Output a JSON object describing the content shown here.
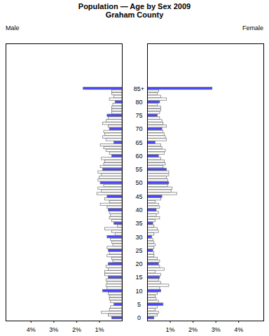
{
  "chart_data": {
    "type": "bar",
    "orientation": "horizontal",
    "title": "Population — Age by Sex 2009",
    "subtitle": "Graham County",
    "categories": [
      "0",
      null,
      null,
      null,
      null,
      "5",
      null,
      null,
      null,
      null,
      "10",
      null,
      null,
      null,
      null,
      "15",
      null,
      null,
      null,
      null,
      "20",
      null,
      null,
      null,
      null,
      "25",
      null,
      null,
      null,
      null,
      "30",
      null,
      null,
      null,
      null,
      "35",
      null,
      null,
      null,
      null,
      "40",
      null,
      null,
      null,
      null,
      "45",
      null,
      null,
      null,
      null,
      "50",
      null,
      null,
      null,
      null,
      "55",
      null,
      null,
      null,
      null,
      "60",
      null,
      null,
      null,
      null,
      "65",
      null,
      null,
      null,
      null,
      "70",
      null,
      null,
      null,
      null,
      "75",
      null,
      null,
      null,
      null,
      "80",
      null,
      null,
      null,
      null,
      "85+"
    ],
    "series": [
      {
        "name": "Male",
        "values": [
          0.45,
          0.6,
          0.9,
          0.55,
          0.5,
          0.35,
          0.5,
          0.55,
          0.55,
          0.6,
          0.85,
          0.65,
          0.7,
          0.65,
          0.7,
          0.6,
          0.75,
          0.75,
          0.6,
          0.7,
          0.6,
          0.4,
          0.45,
          0.65,
          0.55,
          0.6,
          0.65,
          0.4,
          0.45,
          0.5,
          0.65,
          0.3,
          0.45,
          0.75,
          0.2,
          0.35,
          0.45,
          0.55,
          0.5,
          0.55,
          0.6,
          0.65,
          0.95,
          0.55,
          0.75,
          0.65,
          1.1,
          0.9,
          1.05,
          0.8,
          0.95,
          1.05,
          1.0,
          0.9,
          1.05,
          0.85,
          0.95,
          0.8,
          0.75,
          0.9,
          0.45,
          0.55,
          0.7,
          0.8,
          0.95,
          0.35,
          0.7,
          0.85,
          0.75,
          0.8,
          0.55,
          0.6,
          0.85,
          0.7,
          0.6,
          0.65,
          0.45,
          0.45,
          0.45,
          0.4,
          0.3,
          0.55,
          0.35,
          0.45,
          0.45,
          1.7
        ]
      },
      {
        "name": "Female",
        "values": [
          0.3,
          0.45,
          0.5,
          0.35,
          0.45,
          0.7,
          0.5,
          0.4,
          0.35,
          0.45,
          0.6,
          0.55,
          0.95,
          0.6,
          0.5,
          0.55,
          0.6,
          0.35,
          0.75,
          0.55,
          0.5,
          0.55,
          0.45,
          0.3,
          0.3,
          0.25,
          0.3,
          0.35,
          0.3,
          0.25,
          0.2,
          0.3,
          0.5,
          0.45,
          0.3,
          0.25,
          0.35,
          0.55,
          0.4,
          0.5,
          0.4,
          0.55,
          0.5,
          0.35,
          0.6,
          0.65,
          1.3,
          1.05,
          1.1,
          0.9,
          0.95,
          0.9,
          0.85,
          0.95,
          0.95,
          0.85,
          0.7,
          0.8,
          0.75,
          0.6,
          0.5,
          0.75,
          0.8,
          0.65,
          0.6,
          0.35,
          0.85,
          0.8,
          0.75,
          0.7,
          0.65,
          0.85,
          0.7,
          0.65,
          0.55,
          0.45,
          0.55,
          0.6,
          0.6,
          0.45,
          0.55,
          0.85,
          0.6,
          0.45,
          0.5,
          2.85
        ]
      }
    ],
    "colors": [
      "#4646ff",
      "#ffffff",
      "#ffffff",
      "#ffffff",
      "#ffffff",
      "#4646ff",
      "#ffffff",
      "#ffffff",
      "#ffffff",
      "#ffffff",
      "#4646ff",
      "#ffffff",
      "#ffffff",
      "#ffffff",
      "#ffffff",
      "#4646ff",
      "#ffffff",
      "#ffffff",
      "#ffffff",
      "#ffffff",
      "#4646ff",
      "#ffffff",
      "#ffffff",
      "#ffffff",
      "#ffffff",
      "#4646ff",
      "#ffffff",
      "#ffffff",
      "#ffffff",
      "#ffffff",
      "#4646ff",
      "#ffffff",
      "#ffffff",
      "#ffffff",
      "#ffffff",
      "#4646ff",
      "#ffffff",
      "#ffffff",
      "#ffffff",
      "#ffffff",
      "#4646ff",
      "#ffffff",
      "#ffffff",
      "#ffffff",
      "#ffffff",
      "#4646ff",
      "#ffffff",
      "#ffffff",
      "#ffffff",
      "#ffffff",
      "#4646ff",
      "#ffffff",
      "#ffffff",
      "#ffffff",
      "#ffffff",
      "#4646ff",
      "#ffffff",
      "#ffffff",
      "#ffffff",
      "#ffffff",
      "#4646ff",
      "#ffffff",
      "#ffffff",
      "#ffffff",
      "#ffffff",
      "#4646ff",
      "#ffffff",
      "#ffffff",
      "#ffffff",
      "#ffffff",
      "#4646ff",
      "#ffffff",
      "#ffffff",
      "#ffffff",
      "#ffffff",
      "#4646ff",
      "#ffffff",
      "#ffffff",
      "#ffffff",
      "#ffffff",
      "#4646ff",
      "#ffffff",
      "#ffffff",
      "#ffffff",
      "#ffffff",
      "#4646ff"
    ],
    "xlim": [
      0,
      5.1
    ],
    "xticks": [
      {
        "value": 1,
        "label": "1%"
      },
      {
        "value": 2,
        "label": "2%"
      },
      {
        "value": 3,
        "label": "3%"
      },
      {
        "value": 4,
        "label": "4%"
      }
    ]
  }
}
